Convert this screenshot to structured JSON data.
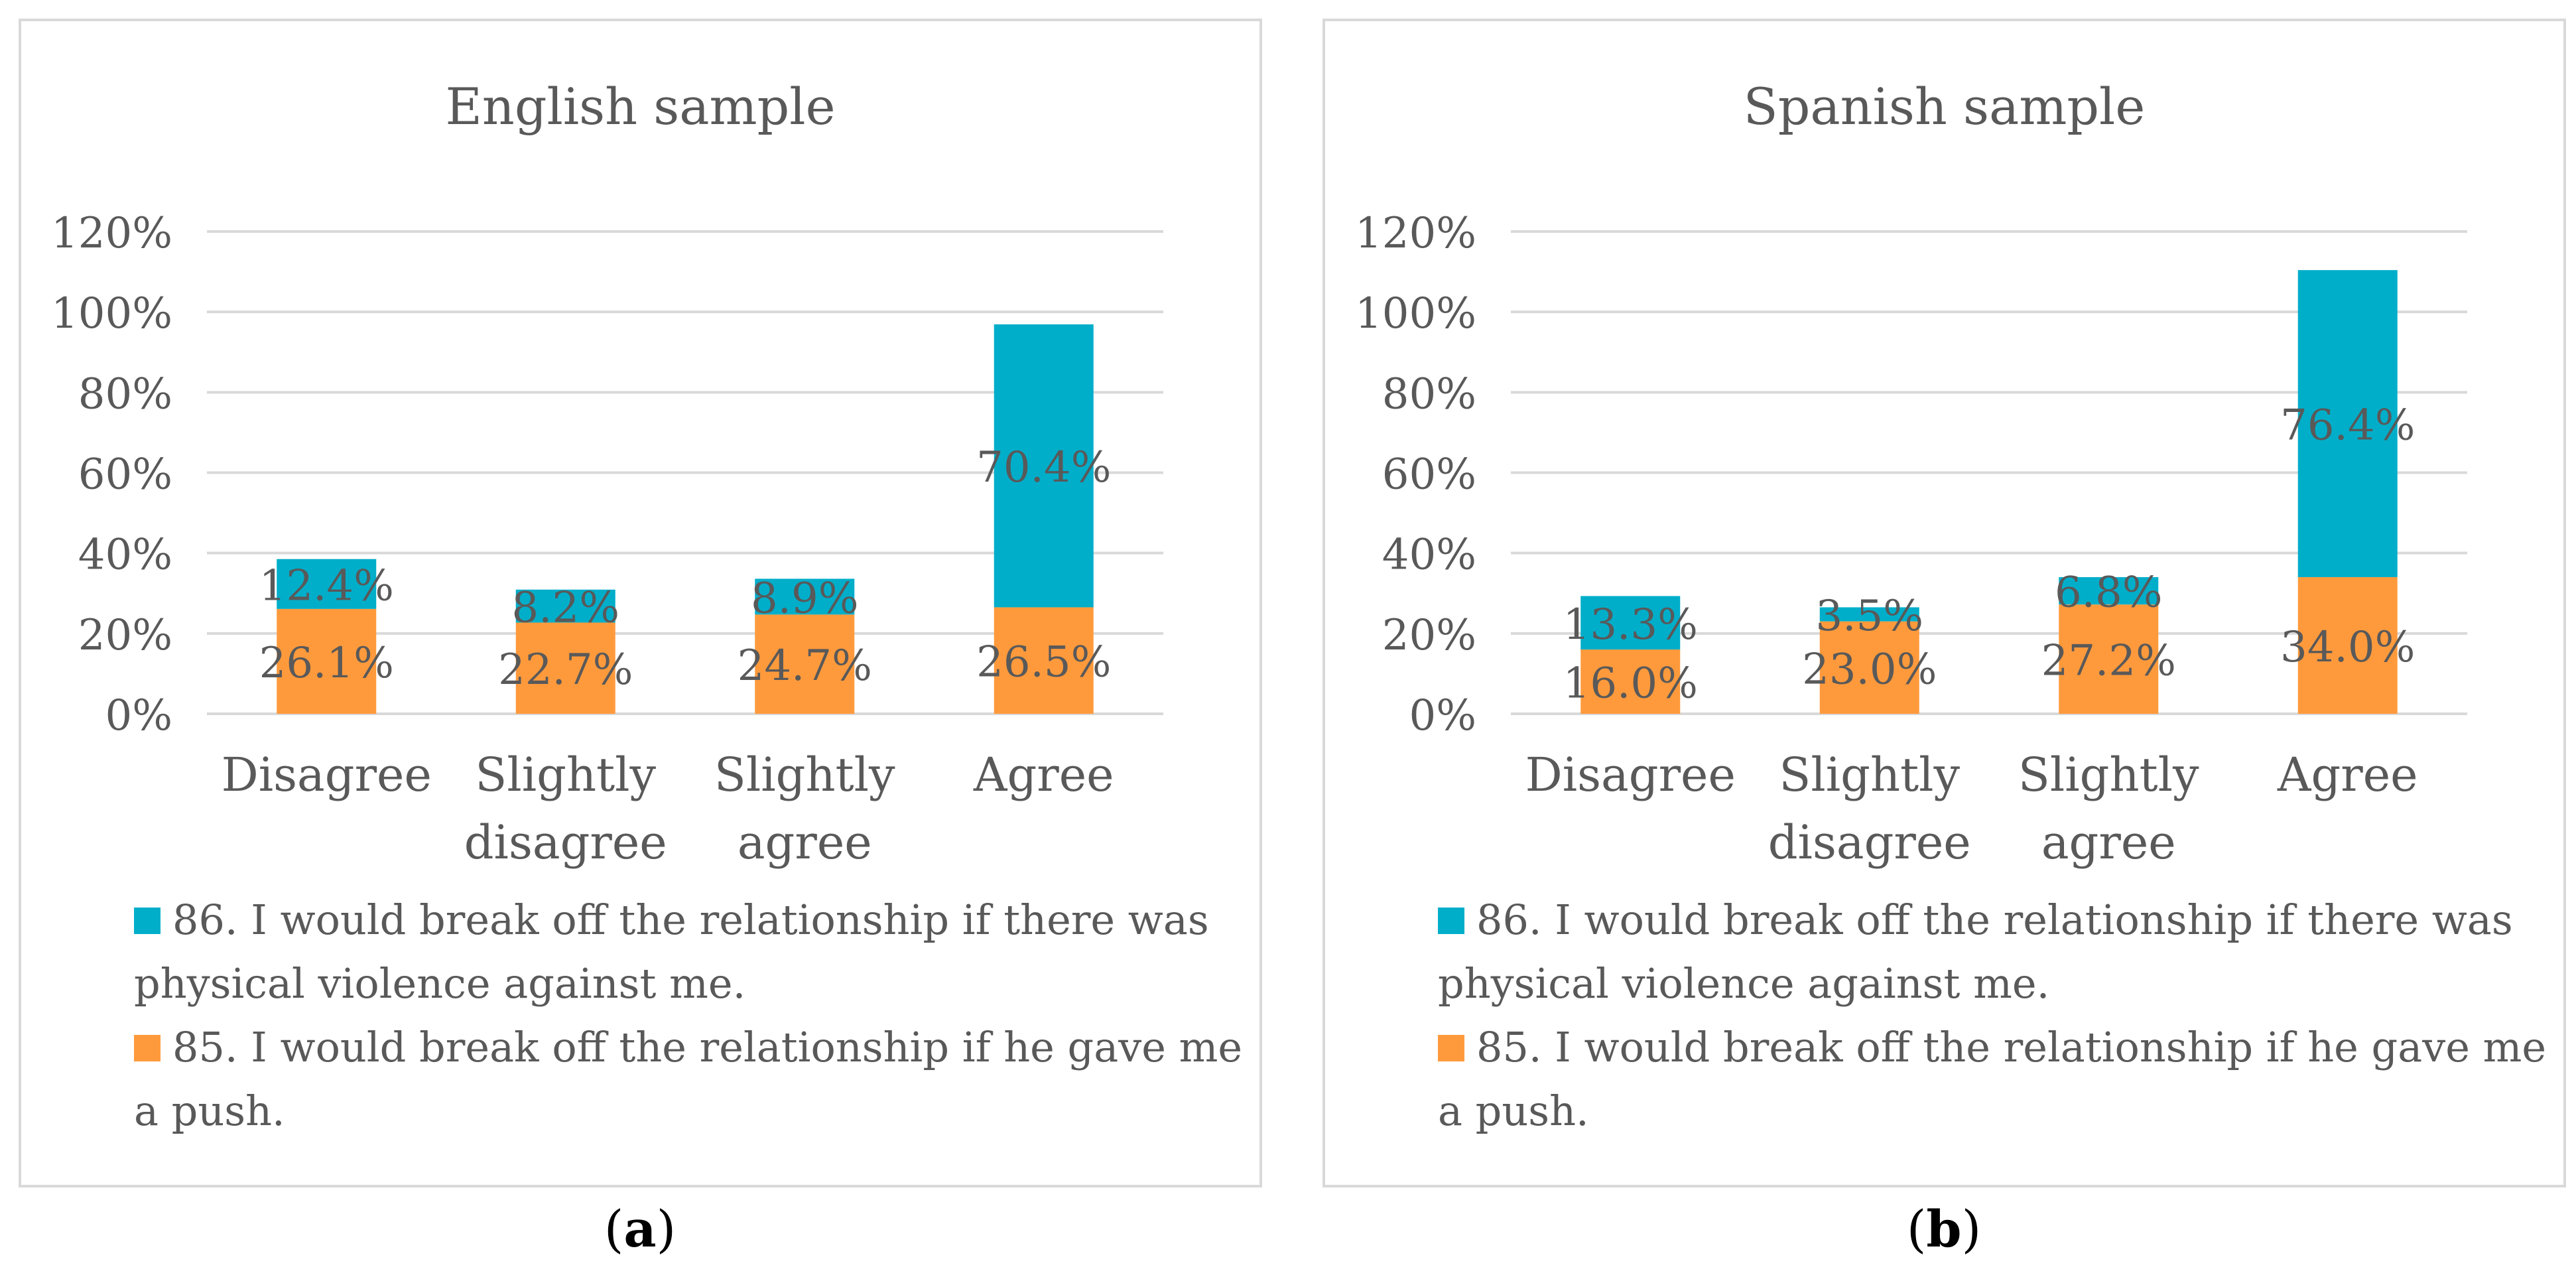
{
  "chart_data": [
    {
      "type": "bar",
      "stacked": true,
      "title": "English sample",
      "categories": [
        "Disagree",
        "Slightly disagree",
        "Slightly agree",
        "Agree"
      ],
      "category_lines": [
        [
          "Disagree"
        ],
        [
          "Slightly",
          "disagree"
        ],
        [
          "Slightly",
          "agree"
        ],
        [
          "Agree"
        ]
      ],
      "series": [
        {
          "name": "85. I would break off the relationship if he gave me a push.",
          "legend_lines": [
            "85. I would break off the relationship if he gave me",
            "a push."
          ],
          "color": "#FF9A3C",
          "values": [
            26.1,
            22.7,
            24.7,
            26.5
          ],
          "labels": [
            "26.1%",
            "22.7%",
            "24.7%",
            "26.5%"
          ]
        },
        {
          "name": "86. I would break off the relationship if there was physical violence against me.",
          "legend_lines": [
            "86. I would break off the relationship if there was",
            "physical violence against me."
          ],
          "color": "#00AECA",
          "values": [
            12.4,
            8.2,
            8.9,
            70.4
          ],
          "labels": [
            "12.4%",
            "8.2%",
            "8.9%",
            "70.4%"
          ]
        }
      ],
      "legend_order": [
        1,
        0
      ],
      "ylim": [
        0,
        120
      ],
      "yticks": [
        0,
        20,
        40,
        60,
        80,
        100,
        120
      ],
      "ytick_labels": [
        "0%",
        "20%",
        "40%",
        "60%",
        "80%",
        "100%",
        "120%"
      ],
      "xlabel": "",
      "ylabel": "",
      "grid": true,
      "legend_position": "bottom",
      "caption": {
        "open": "(",
        "letter": "a",
        "close": ")"
      }
    },
    {
      "type": "bar",
      "stacked": true,
      "title": "Spanish sample",
      "categories": [
        "Disagree",
        "Slightly disagree",
        "Slightly agree",
        "Agree"
      ],
      "category_lines": [
        [
          "Disagree"
        ],
        [
          "Slightly",
          "disagree"
        ],
        [
          "Slightly",
          "agree"
        ],
        [
          "Agree"
        ]
      ],
      "series": [
        {
          "name": "85. I would break off the relationship if he gave me a push.",
          "legend_lines": [
            "85. I would break off the relationship if he gave me",
            "a push."
          ],
          "color": "#FF9A3C",
          "values": [
            16.0,
            23.0,
            27.2,
            34.0
          ],
          "labels": [
            "16.0%",
            "23.0%",
            "27.2%",
            "34.0%"
          ]
        },
        {
          "name": "86. I would break off the relationship if there was physical violence against me.",
          "legend_lines": [
            "86. I would break off the relationship if there was",
            "physical violence against me."
          ],
          "color": "#00AECA",
          "values": [
            13.3,
            3.5,
            6.8,
            76.4
          ],
          "labels": [
            "13.3%",
            "3.5%",
            "6.8%",
            "76.4%"
          ]
        }
      ],
      "legend_order": [
        1,
        0
      ],
      "ylim": [
        0,
        120
      ],
      "yticks": [
        0,
        20,
        40,
        60,
        80,
        100,
        120
      ],
      "ytick_labels": [
        "0%",
        "20%",
        "40%",
        "60%",
        "80%",
        "100%",
        "120%"
      ],
      "xlabel": "",
      "ylabel": "",
      "grid": true,
      "legend_position": "bottom",
      "caption": {
        "open": "(",
        "letter": "b",
        "close": ")"
      }
    }
  ],
  "colors": {
    "text": "#595959",
    "grid": "#d9d9d9",
    "border": "#d9d9d9"
  }
}
